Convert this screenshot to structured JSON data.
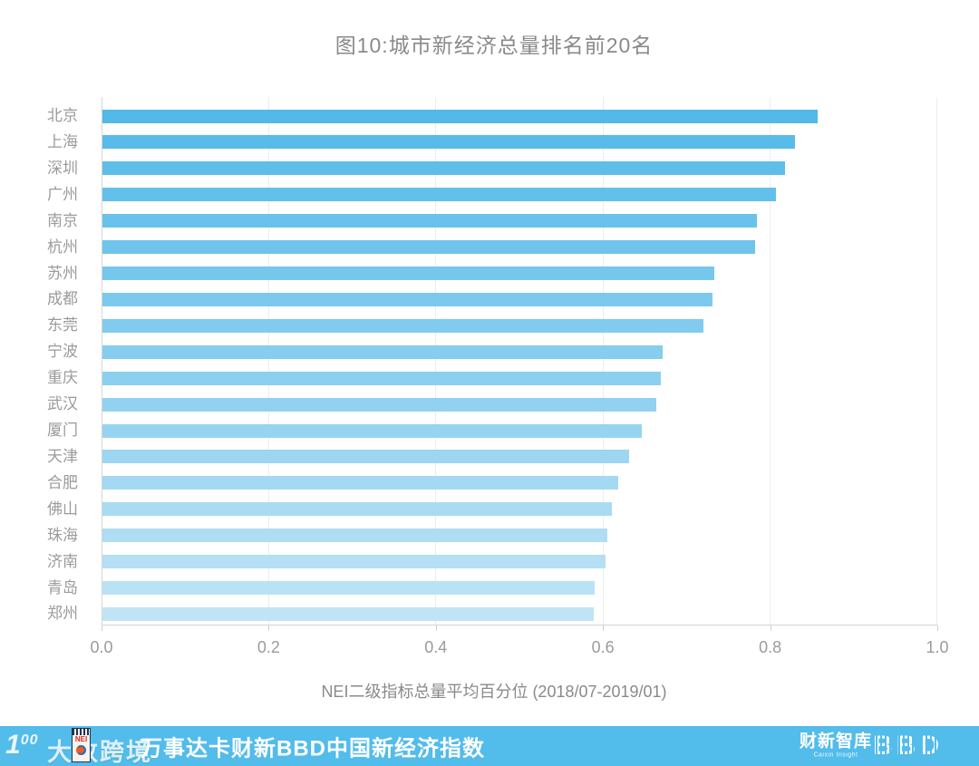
{
  "title": "图10:城市新经济总量排名前20名",
  "chart_data": {
    "type": "bar",
    "orientation": "horizontal",
    "title": "图10:城市新经济总量排名前20名",
    "categories": [
      "北京",
      "上海",
      "深圳",
      "广州",
      "南京",
      "杭州",
      "苏州",
      "成都",
      "东莞",
      "宁波",
      "重庆",
      "武汉",
      "厦门",
      "天津",
      "合肥",
      "佛山",
      "珠海",
      "济南",
      "青岛",
      "郑州"
    ],
    "values": [
      0.857,
      0.829,
      0.818,
      0.807,
      0.784,
      0.782,
      0.733,
      0.731,
      0.72,
      0.671,
      0.669,
      0.663,
      0.646,
      0.631,
      0.618,
      0.61,
      0.605,
      0.603,
      0.59,
      0.589
    ],
    "xlabel": "NEI二级指标总量平均百分位 (2018/07-2019/01)",
    "xlim": [
      0,
      1
    ],
    "xticks": [
      "0.0",
      "0.2",
      "0.4",
      "0.6",
      "0.8",
      "1.0"
    ],
    "grid": "vertical-light",
    "legend": "none",
    "bar_color_start": "#52b9e8",
    "bar_color_end": "#c0e4f6"
  },
  "colors": {
    "title_gray": "#8a8a8a",
    "label_gray": "#9b9b9b",
    "axis_line": "#d6d6d6",
    "gridline": "#ededed",
    "footer_bg": "#52bceb",
    "footer_text": "#ffffff"
  },
  "footer": {
    "title": "万事达卡财新BBD中国新经济指数",
    "watermark": {
      "logo": "100",
      "logo_one": "1",
      "logo_oo": "00",
      "text": "大数跨境",
      "badge": "NEI"
    },
    "caixin_logo": "财新智库",
    "caixin_logo_sub": "Caixin Insight",
    "bbd_logo": "BBD"
  }
}
